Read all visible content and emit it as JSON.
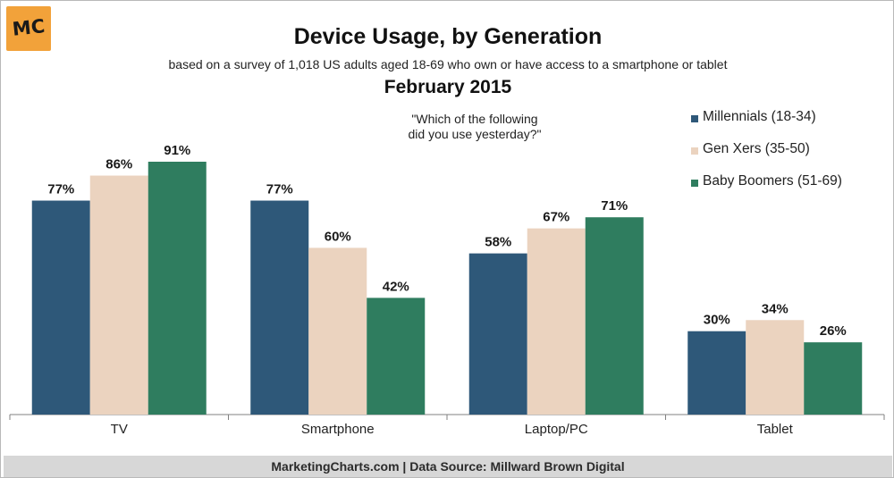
{
  "logo": {
    "text": "MC"
  },
  "footer": {
    "text": "MarketingCharts.com | Data Source: Millward Brown Digital"
  },
  "colors": {
    "millennials": "#2e5879",
    "genx": "#ebd3bf",
    "boomers": "#2f7d5f",
    "axis": "#808080",
    "logo_bg": "#f2a23a"
  },
  "chart_data": {
    "type": "bar",
    "title": "Device Usage, by Generation",
    "subtitle": "based on a survey of 1,018 US adults aged 18-69 who own or have access to a smartphone or tablet",
    "date": "February 2015",
    "annotation": "\"Which of the following did you use yesterday?\"",
    "categories": [
      "TV",
      "Smartphone",
      "Laptop/PC",
      "Tablet"
    ],
    "series": [
      {
        "name": "Millennials (18-34)",
        "values": [
          77,
          77,
          58,
          30
        ],
        "labels": [
          "77%",
          "77%",
          "58%",
          "30%"
        ]
      },
      {
        "name": "Gen Xers (35-50)",
        "values": [
          86,
          60,
          67,
          34
        ],
        "labels": [
          "86%",
          "60%",
          "67%",
          "34%"
        ]
      },
      {
        "name": "Baby Boomers (51-69)",
        "values": [
          91,
          42,
          71,
          26
        ],
        "labels": [
          "91%",
          "42%",
          "71%",
          "26%"
        ]
      }
    ],
    "xlabel": "",
    "ylabel": "",
    "ylim": [
      0,
      100
    ],
    "legend": "top-right",
    "grid": false
  }
}
